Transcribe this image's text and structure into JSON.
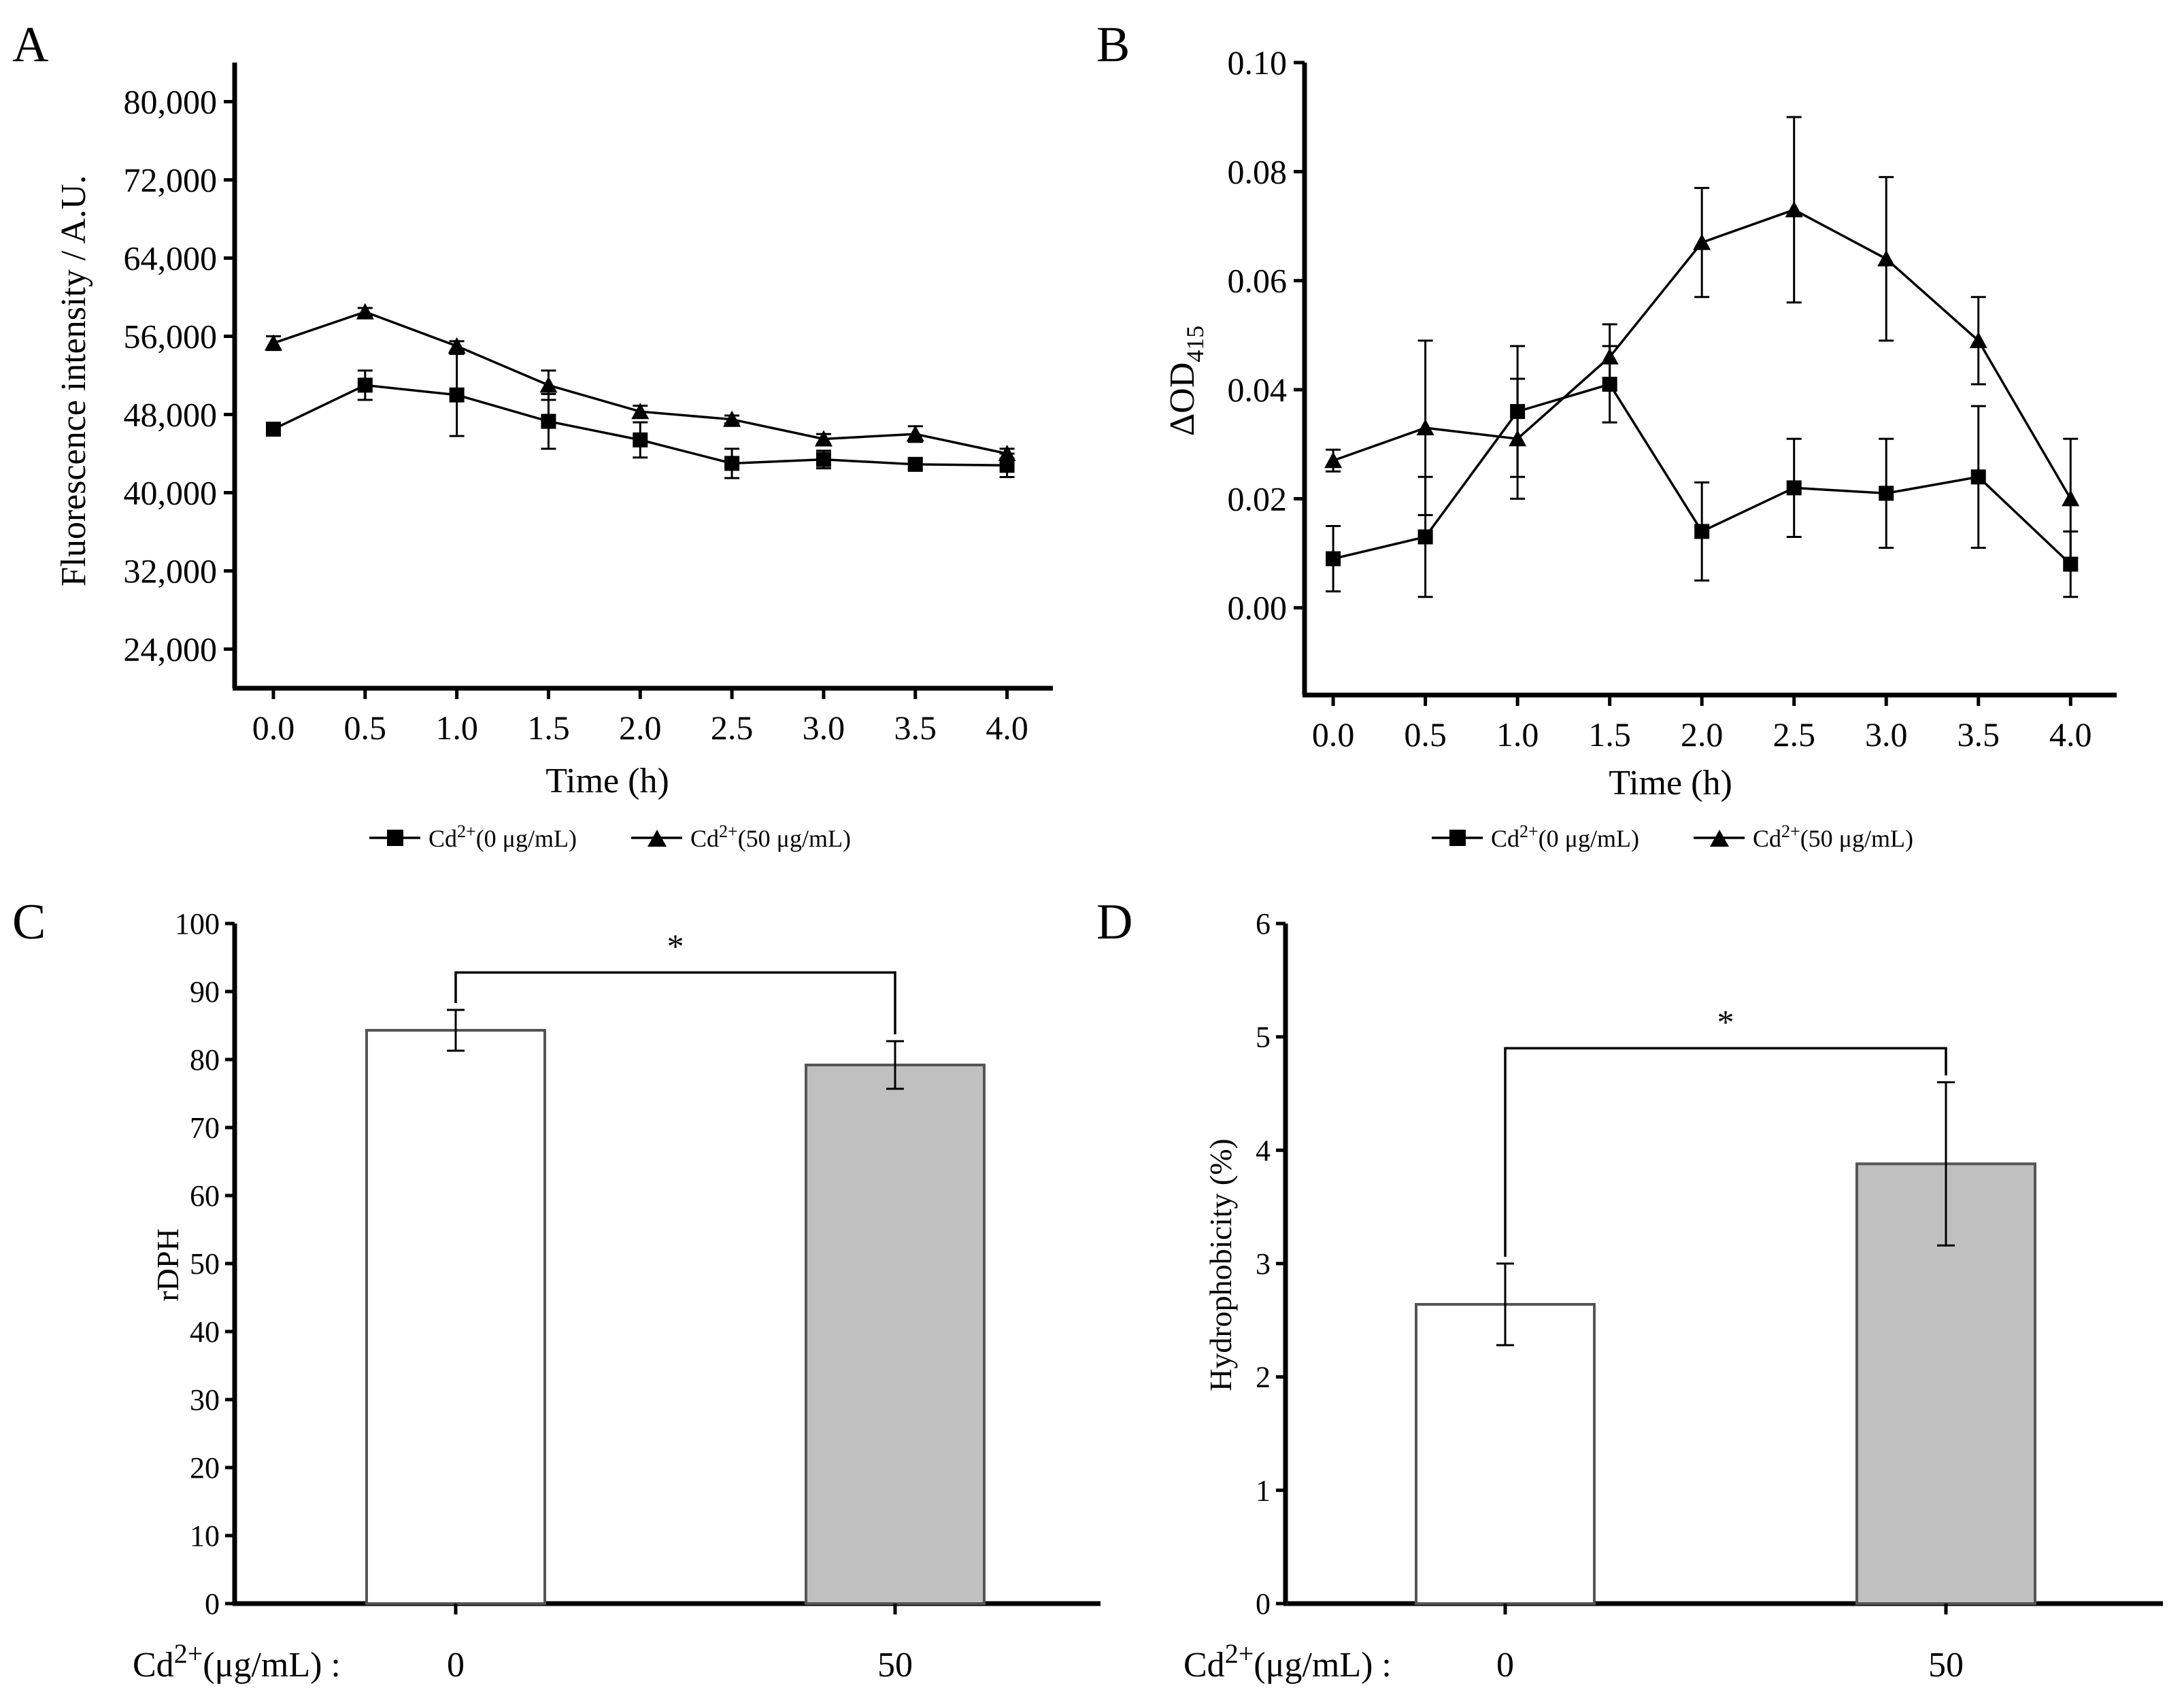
{
  "chart_data": [
    {
      "panel": "A",
      "type": "line",
      "xlabel": "Time (h)",
      "ylabel": "Fluorescence intensity / A.U.",
      "xlim": [
        -0.1,
        4.25
      ],
      "ylim": [
        20000,
        84000
      ],
      "xticks": [
        0.0,
        0.5,
        1.0,
        1.5,
        2.0,
        2.5,
        3.0,
        3.5,
        4.0
      ],
      "xtick_labels": [
        "0.0",
        "0.5",
        "1.0",
        "1.5",
        "2.0",
        "2.5",
        "3.0",
        "3.5",
        "4.0"
      ],
      "yticks": [
        24000,
        32000,
        40000,
        48000,
        56000,
        64000,
        72000,
        80000
      ],
      "ytick_labels": [
        "24,000",
        "32,000",
        "40,000",
        "48,000",
        "56,000",
        "64,000",
        "72,000",
        "80,000"
      ],
      "x": [
        0.0,
        0.5,
        1.0,
        1.5,
        2.0,
        2.5,
        3.0,
        3.5,
        4.0
      ],
      "series": [
        {
          "name": "Cd²⁺(0 μg/mL)",
          "marker": "square",
          "values": [
            46500,
            51000,
            50000,
            47300,
            45400,
            43000,
            43400,
            42900,
            42800
          ],
          "errors": [
            500,
            1500,
            4200,
            2800,
            1800,
            1500,
            900,
            500,
            1200
          ]
        },
        {
          "name": "Cd²⁺(50 μg/mL)",
          "marker": "triangle",
          "values": [
            55300,
            58500,
            55000,
            51000,
            48300,
            47500,
            45500,
            46000,
            44000
          ],
          "errors": [
            700,
            400,
            500,
            1500,
            600,
            400,
            500,
            800,
            500
          ]
        }
      ],
      "legend": [
        {
          "prefix": "Cd",
          "sup": "2+",
          "suffix": "(0 μg/mL)"
        },
        {
          "prefix": "Cd",
          "sup": "2+",
          "suffix": "(50 μg/mL)"
        }
      ],
      "legend_position": "bottom-center"
    },
    {
      "panel": "B",
      "type": "line",
      "xlabel": "Time (h)",
      "ylabel": "ΔOD415",
      "ylabel_main": "ΔOD",
      "ylabel_sub": "415",
      "xlim": [
        -0.1,
        4.25
      ],
      "ylim": [
        -0.016,
        0.1
      ],
      "xticks": [
        0.0,
        0.5,
        1.0,
        1.5,
        2.0,
        2.5,
        3.0,
        3.5,
        4.0
      ],
      "xtick_labels": [
        "0.0",
        "0.5",
        "1.0",
        "1.5",
        "2.0",
        "2.5",
        "3.0",
        "3.5",
        "4.0"
      ],
      "yticks": [
        0.0,
        0.02,
        0.04,
        0.06,
        0.08,
        0.1
      ],
      "ytick_labels": [
        "0.00",
        "0.02",
        "0.04",
        "0.06",
        "0.08",
        "0.10"
      ],
      "x": [
        0.0,
        0.5,
        1.0,
        1.5,
        2.0,
        2.5,
        3.0,
        3.5,
        4.0
      ],
      "series": [
        {
          "name": "Cd²⁺(0 μg/mL)",
          "marker": "square",
          "values": [
            0.009,
            0.013,
            0.036,
            0.041,
            0.014,
            0.022,
            0.021,
            0.024,
            0.008
          ],
          "errors": [
            0.006,
            0.011,
            0.012,
            0.007,
            0.009,
            0.009,
            0.01,
            0.013,
            0.006
          ]
        },
        {
          "name": "Cd²⁺(50 μg/mL)",
          "marker": "triangle",
          "values": [
            0.027,
            0.033,
            0.031,
            0.046,
            0.067,
            0.073,
            0.064,
            0.049,
            0.02
          ],
          "errors": [
            0.002,
            0.016,
            0.011,
            0.006,
            0.01,
            0.017,
            0.015,
            0.008,
            0.011
          ]
        }
      ],
      "legend": [
        {
          "prefix": "Cd",
          "sup": "2+",
          "suffix": "(0 μg/mL)"
        },
        {
          "prefix": "Cd",
          "sup": "2+",
          "suffix": "(50 μg/mL)"
        }
      ],
      "legend_position": "bottom-center"
    },
    {
      "panel": "C",
      "type": "bar",
      "xlabel_prefix": "Cd",
      "xlabel_sup": "2+",
      "xlabel_suffix": "(μg/mL) :",
      "ylabel": "rDPH",
      "ylim": [
        0,
        100
      ],
      "yticks": [
        0,
        10,
        20,
        30,
        40,
        50,
        60,
        70,
        80,
        90,
        100
      ],
      "ytick_labels": [
        "0",
        "10",
        "20",
        "30",
        "40",
        "50",
        "60",
        "70",
        "80",
        "90",
        "100"
      ],
      "categories": [
        "0",
        "50"
      ],
      "values": [
        84.3,
        79.2
      ],
      "errors": [
        3.0,
        3.5
      ],
      "colors": [
        "#ffffff",
        "#c0c0c0"
      ],
      "significance": "*"
    },
    {
      "panel": "D",
      "type": "bar",
      "xlabel_prefix": "Cd",
      "xlabel_sup": "2+",
      "xlabel_suffix": "(μg/mL) :",
      "ylabel": "Hydrophobicity (%)",
      "ylim": [
        0,
        6
      ],
      "yticks": [
        0,
        1,
        2,
        3,
        4,
        5,
        6
      ],
      "ytick_labels": [
        "0",
        "1",
        "2",
        "3",
        "4",
        "5",
        "6"
      ],
      "categories": [
        "0",
        "50"
      ],
      "values": [
        2.64,
        3.88
      ],
      "errors": [
        0.36,
        0.72
      ],
      "colors": [
        "#ffffff",
        "#c0c0c0"
      ],
      "significance": "*"
    }
  ]
}
